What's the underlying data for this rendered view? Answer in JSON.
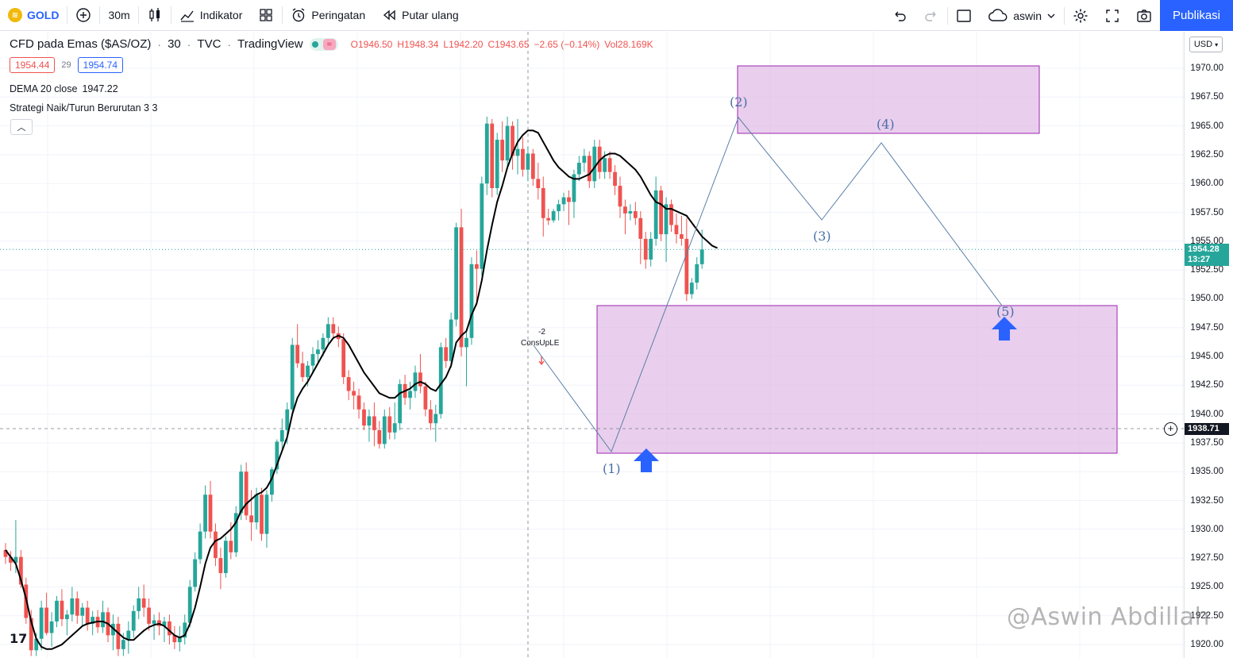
{
  "toolbar": {
    "symbol": "GOLD",
    "interval": "30m",
    "indicators_label": "Indikator",
    "alerts_label": "Peringatan",
    "replay_label": "Putar ulang",
    "user_label": "aswin",
    "publish_label": "Publikasi"
  },
  "legend": {
    "title": "CFD pada Emas ($AS/OZ)",
    "interval": "30",
    "source": "TVC",
    "publisher": "TradingView",
    "open": "O1946.50",
    "high": "H1948.34",
    "low": "L1942.20",
    "close": "C1943.65",
    "change": "−2.65 (−0.14%)",
    "vol": "Vol28.169K",
    "bid": "1954.44",
    "spread": "29",
    "ask": "1954.74",
    "dema_label": "DEMA 20 close",
    "dema_value": "1947.22",
    "strategy_label": "Strategi Naik/Turun Berurutan 3 3"
  },
  "price_axis": {
    "currency": "USD",
    "ticks": [
      "1970.00",
      "1967.50",
      "1965.00",
      "1962.50",
      "1960.00",
      "1957.50",
      "1955.00",
      "1952.50",
      "1950.00",
      "1947.50",
      "1945.00",
      "1942.50",
      "1940.00",
      "1937.50",
      "1935.00",
      "1932.50",
      "1930.00",
      "1927.50",
      "1925.00",
      "1922.50",
      "1920.00"
    ],
    "current_price": "1954.28",
    "countdown": "13:27",
    "crosshair_price": "1938.71"
  },
  "annotations": {
    "wave_labels": [
      "(1)",
      "(2)",
      "(3)",
      "(4)",
      "(5)"
    ],
    "signal_text": "-2",
    "signal_name": "ConsUpLE"
  },
  "watermark": "@Aswin Abdillah",
  "colors": {
    "up": "#26a69a",
    "down": "#ef5350",
    "zone": "#e1bee7",
    "zone_border": "#9c27b0",
    "accent": "#2962ff"
  },
  "chart_data": {
    "type": "candlestick",
    "ylim": [
      1919,
      1972
    ],
    "ohlc": [
      [
        1928.2,
        1928.8,
        1927.0,
        1927.6
      ],
      [
        1927.6,
        1928.1,
        1926.4,
        1927.1
      ],
      [
        1927.1,
        1930.8,
        1926.2,
        1927.6
      ],
      [
        1927.6,
        1928.2,
        1924.9,
        1925.2
      ],
      [
        1925.2,
        1925.8,
        1921.8,
        1922.3
      ],
      [
        1922.3,
        1923.0,
        1919.0,
        1919.5
      ],
      [
        1919.5,
        1921.0,
        1919.0,
        1920.5
      ],
      [
        1920.5,
        1923.8,
        1919.5,
        1923.2
      ],
      [
        1923.2,
        1924.5,
        1920.8,
        1921.0
      ],
      [
        1921.0,
        1922.8,
        1919.8,
        1922.0
      ],
      [
        1922.0,
        1924.2,
        1921.5,
        1923.8
      ],
      [
        1923.8,
        1924.8,
        1921.6,
        1922.2
      ],
      [
        1922.2,
        1923.0,
        1920.8,
        1922.6
      ],
      [
        1922.6,
        1925.0,
        1922.0,
        1924.0
      ],
      [
        1924.0,
        1924.6,
        1921.8,
        1922.5
      ],
      [
        1922.5,
        1923.6,
        1921.6,
        1923.2
      ],
      [
        1923.2,
        1923.8,
        1921.2,
        1921.8
      ],
      [
        1921.8,
        1922.9,
        1920.8,
        1922.4
      ],
      [
        1922.4,
        1923.0,
        1921.0,
        1921.5
      ],
      [
        1921.5,
        1923.8,
        1921.0,
        1922.8
      ],
      [
        1922.8,
        1923.2,
        1920.2,
        1920.8
      ],
      [
        1920.8,
        1922.6,
        1919.5,
        1921.8
      ],
      [
        1921.8,
        1922.4,
        1919.0,
        1919.6
      ],
      [
        1919.6,
        1921.0,
        1919.0,
        1920.4
      ],
      [
        1920.4,
        1922.0,
        1919.2,
        1921.2
      ],
      [
        1921.2,
        1923.4,
        1920.6,
        1922.9
      ],
      [
        1922.9,
        1925.0,
        1922.2,
        1924.0
      ],
      [
        1924.0,
        1925.2,
        1922.4,
        1923.2
      ],
      [
        1923.2,
        1924.0,
        1921.2,
        1921.8
      ],
      [
        1921.8,
        1922.6,
        1920.4,
        1922.1
      ],
      [
        1922.1,
        1922.8,
        1920.8,
        1921.6
      ],
      [
        1921.6,
        1922.4,
        1920.2,
        1922.0
      ],
      [
        1922.0,
        1922.6,
        1920.0,
        1920.8
      ],
      [
        1920.8,
        1921.6,
        1919.6,
        1920.2
      ],
      [
        1920.2,
        1921.6,
        1919.4,
        1920.6
      ],
      [
        1920.6,
        1922.6,
        1920.0,
        1921.9
      ],
      [
        1921.9,
        1925.6,
        1921.5,
        1925.0
      ],
      [
        1925.0,
        1928.0,
        1924.6,
        1927.4
      ],
      [
        1927.4,
        1930.5,
        1927.0,
        1929.8
      ],
      [
        1929.8,
        1933.8,
        1929.2,
        1933.0
      ],
      [
        1933.0,
        1934.2,
        1929.2,
        1929.8
      ],
      [
        1929.8,
        1930.5,
        1926.8,
        1927.5
      ],
      [
        1927.5,
        1928.4,
        1924.8,
        1926.2
      ],
      [
        1926.2,
        1929.4,
        1925.8,
        1929.0
      ],
      [
        1929.0,
        1930.6,
        1927.4,
        1928.0
      ],
      [
        1928.0,
        1932.0,
        1927.6,
        1931.4
      ],
      [
        1931.4,
        1935.6,
        1930.8,
        1935.0
      ],
      [
        1935.0,
        1935.8,
        1930.8,
        1931.2
      ],
      [
        1931.2,
        1933.4,
        1929.0,
        1930.6
      ],
      [
        1930.6,
        1933.6,
        1930.0,
        1933.0
      ],
      [
        1933.0,
        1933.6,
        1929.0,
        1929.6
      ],
      [
        1929.6,
        1933.4,
        1928.4,
        1933.0
      ],
      [
        1933.0,
        1935.4,
        1932.4,
        1935.2
      ],
      [
        1935.2,
        1937.8,
        1934.8,
        1937.6
      ],
      [
        1937.6,
        1939.6,
        1936.8,
        1938.6
      ],
      [
        1938.6,
        1941.0,
        1937.4,
        1940.4
      ],
      [
        1940.4,
        1946.6,
        1939.8,
        1946.0
      ],
      [
        1946.0,
        1947.8,
        1944.0,
        1944.4
      ],
      [
        1944.4,
        1945.4,
        1942.8,
        1943.2
      ],
      [
        1943.2,
        1944.6,
        1942.4,
        1944.2
      ],
      [
        1944.2,
        1945.8,
        1943.6,
        1945.2
      ],
      [
        1945.2,
        1946.4,
        1944.4,
        1945.6
      ],
      [
        1945.6,
        1947.0,
        1945.0,
        1946.6
      ],
      [
        1946.6,
        1948.4,
        1946.0,
        1947.8
      ],
      [
        1947.8,
        1948.4,
        1946.6,
        1947.0
      ],
      [
        1947.0,
        1947.6,
        1945.8,
        1946.5
      ],
      [
        1946.5,
        1947.0,
        1942.6,
        1943.2
      ],
      [
        1943.2,
        1943.8,
        1941.2,
        1942.0
      ],
      [
        1942.0,
        1942.8,
        1940.4,
        1941.6
      ],
      [
        1941.6,
        1942.2,
        1939.6,
        1940.4
      ],
      [
        1940.4,
        1941.0,
        1938.6,
        1939.0
      ],
      [
        1939.0,
        1940.4,
        1937.6,
        1939.8
      ],
      [
        1939.8,
        1941.0,
        1937.2,
        1938.6
      ],
      [
        1938.6,
        1939.4,
        1937.0,
        1937.4
      ],
      [
        1937.4,
        1940.4,
        1937.0,
        1939.8
      ],
      [
        1939.8,
        1940.6,
        1937.8,
        1938.4
      ],
      [
        1938.4,
        1941.0,
        1937.8,
        1939.2
      ],
      [
        1939.2,
        1943.0,
        1938.6,
        1942.6
      ],
      [
        1942.6,
        1943.4,
        1940.8,
        1941.4
      ],
      [
        1941.4,
        1942.8,
        1940.4,
        1942.0
      ],
      [
        1942.0,
        1944.2,
        1941.4,
        1943.6
      ],
      [
        1943.6,
        1945.2,
        1941.8,
        1942.4
      ],
      [
        1942.4,
        1942.8,
        1939.8,
        1940.4
      ],
      [
        1940.4,
        1941.2,
        1938.6,
        1939.2
      ],
      [
        1939.2,
        1940.8,
        1937.6,
        1940.0
      ],
      [
        1940.0,
        1946.2,
        1939.6,
        1945.8
      ],
      [
        1945.8,
        1946.6,
        1944.0,
        1944.6
      ],
      [
        1944.6,
        1948.8,
        1944.0,
        1948.2
      ],
      [
        1948.2,
        1956.6,
        1947.6,
        1956.2
      ],
      [
        1956.2,
        1957.8,
        1945.0,
        1945.8
      ],
      [
        1945.8,
        1947.4,
        1942.4,
        1946.6
      ],
      [
        1946.6,
        1953.6,
        1946.0,
        1953.0
      ],
      [
        1953.0,
        1954.2,
        1949.4,
        1952.6
      ],
      [
        1952.6,
        1960.6,
        1952.0,
        1960.0
      ],
      [
        1960.0,
        1965.8,
        1959.0,
        1965.2
      ],
      [
        1965.2,
        1965.6,
        1958.8,
        1959.6
      ],
      [
        1959.6,
        1964.4,
        1959.0,
        1963.8
      ],
      [
        1963.8,
        1965.4,
        1961.0,
        1962.0
      ],
      [
        1962.0,
        1965.8,
        1961.4,
        1965.0
      ],
      [
        1965.0,
        1965.4,
        1961.2,
        1962.4
      ],
      [
        1962.4,
        1965.6,
        1960.8,
        1963.0
      ],
      [
        1963.0,
        1964.0,
        1960.6,
        1961.2
      ],
      [
        1961.2,
        1963.2,
        1960.2,
        1962.6
      ],
      [
        1962.6,
        1963.0,
        1959.8,
        1960.4
      ],
      [
        1960.4,
        1961.8,
        1958.6,
        1959.6
      ],
      [
        1959.6,
        1960.6,
        1955.4,
        1957.0
      ],
      [
        1957.0,
        1957.8,
        1956.4,
        1956.8
      ],
      [
        1956.8,
        1957.8,
        1956.6,
        1957.6
      ],
      [
        1957.6,
        1958.6,
        1956.8,
        1958.2
      ],
      [
        1958.2,
        1959.2,
        1957.6,
        1958.8
      ],
      [
        1958.8,
        1959.4,
        1956.4,
        1958.4
      ],
      [
        1958.4,
        1961.2,
        1957.0,
        1960.8
      ],
      [
        1960.8,
        1962.4,
        1960.2,
        1961.8
      ],
      [
        1961.8,
        1963.0,
        1961.0,
        1962.4
      ],
      [
        1962.4,
        1962.8,
        1959.6,
        1960.2
      ],
      [
        1960.2,
        1963.8,
        1959.6,
        1963.2
      ],
      [
        1963.2,
        1963.8,
        1960.4,
        1961.0
      ],
      [
        1961.0,
        1962.8,
        1960.4,
        1962.2
      ],
      [
        1962.2,
        1962.8,
        1960.4,
        1961.0
      ],
      [
        1961.0,
        1961.6,
        1959.0,
        1959.8
      ],
      [
        1959.8,
        1960.6,
        1957.0,
        1958.0
      ],
      [
        1958.0,
        1958.6,
        1955.6,
        1957.4
      ],
      [
        1957.4,
        1958.2,
        1956.8,
        1957.6
      ],
      [
        1957.6,
        1958.4,
        1956.4,
        1957.0
      ],
      [
        1957.0,
        1957.6,
        1953.0,
        1955.2
      ],
      [
        1955.2,
        1955.8,
        1952.6,
        1953.4
      ],
      [
        1953.4,
        1955.8,
        1952.8,
        1955.2
      ],
      [
        1955.2,
        1960.6,
        1954.6,
        1959.4
      ],
      [
        1959.4,
        1959.8,
        1955.0,
        1955.6
      ],
      [
        1955.6,
        1958.8,
        1953.2,
        1958.2
      ],
      [
        1958.2,
        1958.6,
        1955.8,
        1956.4
      ],
      [
        1956.4,
        1957.4,
        1954.8,
        1955.6
      ],
      [
        1955.6,
        1957.2,
        1954.6,
        1955.2
      ],
      [
        1955.2,
        1957.0,
        1949.8,
        1950.4
      ],
      [
        1950.4,
        1951.8,
        1950.0,
        1951.4
      ],
      [
        1951.4,
        1953.6,
        1950.8,
        1953.0
      ],
      [
        1953.0,
        1956.0,
        1952.6,
        1954.28
      ]
    ],
    "dema_20": [
      1928.2,
      1927.6,
      1927.0,
      1925.6,
      1924.0,
      1922.0,
      1920.5,
      1919.8,
      1919.6,
      1919.6,
      1919.8,
      1920.0,
      1920.4,
      1920.8,
      1921.2,
      1921.6,
      1921.8,
      1921.9,
      1922.0,
      1922.0,
      1921.8,
      1921.4,
      1921.0,
      1920.6,
      1920.4,
      1920.4,
      1920.8,
      1921.2,
      1921.5,
      1921.7,
      1921.8,
      1921.6,
      1921.2,
      1920.8,
      1920.6,
      1920.8,
      1921.8,
      1923.2,
      1925.0,
      1927.0,
      1928.4,
      1929.0,
      1929.2,
      1929.6,
      1930.0,
      1930.6,
      1931.6,
      1932.2,
      1932.6,
      1933.0,
      1933.2,
      1933.6,
      1934.4,
      1935.6,
      1936.8,
      1938.0,
      1940.0,
      1941.4,
      1942.2,
      1942.8,
      1943.6,
      1944.4,
      1945.2,
      1946.0,
      1946.6,
      1946.8,
      1946.6,
      1946.0,
      1945.2,
      1944.4,
      1943.6,
      1943.0,
      1942.4,
      1941.8,
      1941.6,
      1941.4,
      1941.4,
      1941.8,
      1942.0,
      1942.2,
      1942.6,
      1942.8,
      1942.6,
      1942.2,
      1942.0,
      1942.6,
      1943.2,
      1944.2,
      1946.2,
      1946.8,
      1947.2,
      1948.6,
      1949.6,
      1951.6,
      1954.2,
      1956.4,
      1958.4,
      1959.8,
      1961.4,
      1962.6,
      1963.6,
      1964.2,
      1964.6,
      1964.6,
      1964.4,
      1963.6,
      1962.8,
      1962.0,
      1961.4,
      1961.0,
      1960.6,
      1960.4,
      1960.4,
      1960.6,
      1960.8,
      1961.4,
      1962.0,
      1962.4,
      1962.6,
      1962.6,
      1962.4,
      1962.0,
      1961.6,
      1961.2,
      1960.6,
      1959.8,
      1959.0,
      1958.4,
      1958.2,
      1957.8,
      1957.8,
      1957.6,
      1957.4,
      1957.2,
      1956.6,
      1956.0,
      1955.4,
      1955.0,
      1954.6,
      1954.4
    ]
  }
}
